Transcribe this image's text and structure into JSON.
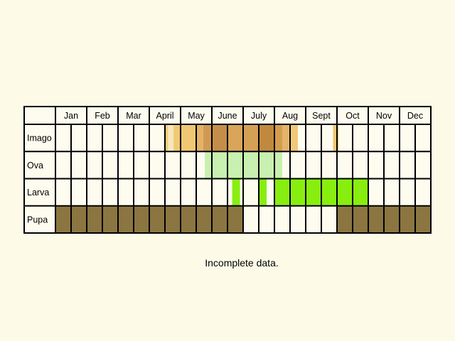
{
  "chart_data": {
    "type": "table",
    "columns": [
      "Jan",
      "Feb",
      "Mar",
      "April",
      "May",
      "June",
      "July",
      "Aug",
      "Sept",
      "Oct",
      "Nov",
      "Dec"
    ],
    "half_months_per_column": 2,
    "rows": [
      {
        "label": "Imago",
        "segments": [
          {
            "from": 6.95,
            "to": 7.2,
            "color": "#f3cd7b"
          },
          {
            "from": 7.2,
            "to": 7.55,
            "color": "#f6e7bb"
          },
          {
            "from": 7.55,
            "to": 8.0,
            "color": "#f1c975"
          },
          {
            "from": 8.0,
            "to": 9.0,
            "color": "#f0c873"
          },
          {
            "from": 9.0,
            "to": 9.45,
            "color": "#e4b266"
          },
          {
            "from": 9.45,
            "to": 10.0,
            "color": "#d09a55"
          },
          {
            "from": 10.0,
            "to": 11.0,
            "color": "#c48e4a"
          },
          {
            "from": 11.0,
            "to": 12.0,
            "color": "#d8a55a"
          },
          {
            "from": 12.0,
            "to": 13.0,
            "color": "#d4a056"
          },
          {
            "from": 13.0,
            "to": 14.0,
            "color": "#c0893e"
          },
          {
            "from": 14.0,
            "to": 14.5,
            "color": "#d49c50"
          },
          {
            "from": 14.5,
            "to": 15.0,
            "color": "#e4b46a"
          },
          {
            "from": 15.0,
            "to": 15.5,
            "color": "#f0c878"
          },
          {
            "from": 17.75,
            "to": 18.1,
            "color": "#f0c576"
          }
        ]
      },
      {
        "label": "Ova",
        "segments": [
          {
            "from": 9.55,
            "to": 14.5,
            "color": "#c8f0b0"
          }
        ]
      },
      {
        "label": "Larva",
        "segments": [
          {
            "from": 11.3,
            "to": 11.8,
            "color": "#88ee10"
          },
          {
            "from": 13.0,
            "to": 13.5,
            "color": "#88ee10"
          },
          {
            "from": 14.0,
            "to": 20.0,
            "color": "#88ee10"
          }
        ]
      },
      {
        "label": "Pupa",
        "segments": [
          {
            "from": 0,
            "to": 12.0,
            "color": "#8b7541"
          },
          {
            "from": 18.0,
            "to": 24.0,
            "color": "#8b7541"
          }
        ]
      }
    ],
    "caption": "Incomplete data."
  }
}
